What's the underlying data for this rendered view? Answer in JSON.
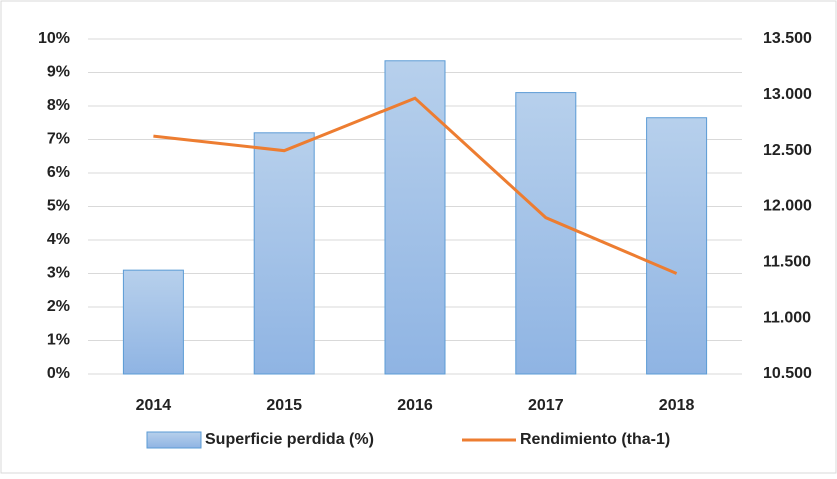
{
  "chart_data": {
    "type": "bar",
    "categories": [
      "2014",
      "2015",
      "2016",
      "2017",
      "2018"
    ],
    "series": [
      {
        "name": "Superficie perdida (%)",
        "type": "bar",
        "color": "#9dc3e6",
        "values": [
          3.1,
          7.2,
          9.35,
          8.4,
          7.65
        ]
      },
      {
        "name": "Rendimiento (tha-1)",
        "type": "line",
        "axis": "y2",
        "color": "#ed7d31",
        "values": [
          12630,
          12500,
          12970,
          11900,
          11400
        ]
      }
    ],
    "ylim": [
      0,
      10
    ],
    "yticks": [
      {
        "value": 0,
        "label": "0%"
      },
      {
        "value": 1,
        "label": "1%"
      },
      {
        "value": 2,
        "label": "2%"
      },
      {
        "value": 3,
        "label": "3%"
      },
      {
        "value": 4,
        "label": "4%"
      },
      {
        "value": 5,
        "label": "5%"
      },
      {
        "value": 6,
        "label": "6%"
      },
      {
        "value": 7,
        "label": "7%"
      },
      {
        "value": 8,
        "label": "8%"
      },
      {
        "value": 9,
        "label": "9%"
      },
      {
        "value": 10,
        "label": "10%"
      }
    ],
    "y2lim": [
      10500,
      13500
    ],
    "y2ticks": [
      {
        "value": 10500,
        "label": "10.500"
      },
      {
        "value": 11000,
        "label": "11.000"
      },
      {
        "value": 11500,
        "label": "11.500"
      },
      {
        "value": 12000,
        "label": "12.000"
      },
      {
        "value": 12500,
        "label": "12.500"
      },
      {
        "value": 13000,
        "label": "13.000"
      },
      {
        "value": 13500,
        "label": "13.500"
      }
    ],
    "grid": true,
    "legend": "bottom"
  }
}
